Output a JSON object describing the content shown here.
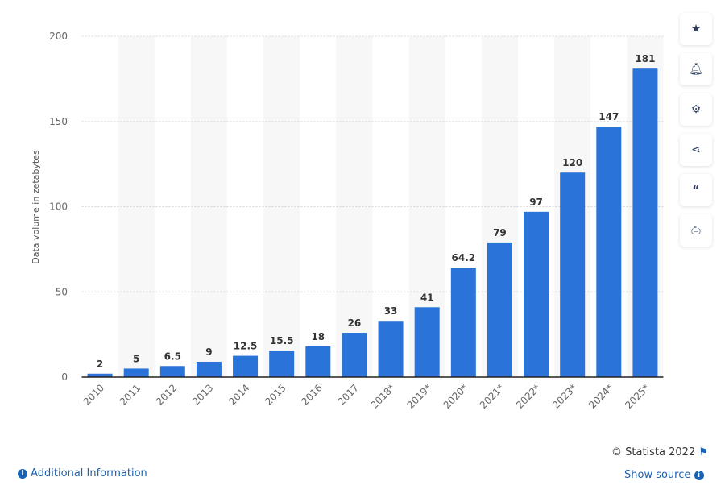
{
  "chart_data": {
    "type": "bar",
    "categories": [
      "2010",
      "2011",
      "2012",
      "2013",
      "2014",
      "2015",
      "2016",
      "2017",
      "2018*",
      "2019*",
      "2020*",
      "2021*",
      "2022*",
      "2023*",
      "2024*",
      "2025*"
    ],
    "values": [
      2,
      5,
      6.5,
      9,
      12.5,
      15.5,
      18,
      26,
      33,
      41,
      64.2,
      79,
      97,
      120,
      147,
      181
    ],
    "value_labels": [
      "2",
      "5",
      "6.5",
      "9",
      "12.5",
      "15.5",
      "18",
      "26",
      "33",
      "41",
      "64.2",
      "79",
      "97",
      "120",
      "147",
      "181"
    ],
    "ylabel": "Data volume in zetabytes",
    "ylim": [
      0,
      200
    ],
    "yticks": [
      0,
      50,
      100,
      150,
      200
    ],
    "grid": true,
    "bar_color": "#2a74d9"
  },
  "sidebar": {
    "icons": [
      "star-icon",
      "bell-icon",
      "gear-icon",
      "share-icon",
      "quote-icon",
      "print-icon"
    ]
  },
  "footer": {
    "copyright": "© Statista 2022",
    "show_source": "Show source",
    "additional_info": "Additional Information"
  }
}
